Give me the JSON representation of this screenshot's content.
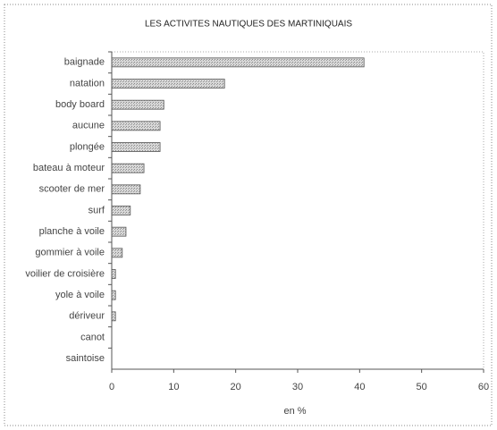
{
  "chart_data": {
    "type": "hbar",
    "title": "LES ACTIVITES NAUTIQUES DES MARTINIQUAIS",
    "categories": [
      "baignade",
      "natation",
      "body board",
      "aucune",
      "plongée",
      "bateau à moteur",
      "scooter de mer",
      "surf",
      "planche à voile",
      "gommier à voile",
      "voilier de croisière",
      "yole à voile",
      "dériveur",
      "canot",
      "saintoise"
    ],
    "values": [
      40.7,
      18.2,
      8.4,
      7.8,
      7.8,
      5.2,
      4.6,
      3.0,
      2.3,
      1.7,
      0.6,
      0.6,
      0.6,
      0,
      0
    ],
    "color": "#c8c8c8",
    "xlabel": "en %",
    "xlim": [
      0,
      60
    ],
    "xticks": [
      0,
      10,
      20,
      30,
      40,
      50,
      60
    ]
  }
}
